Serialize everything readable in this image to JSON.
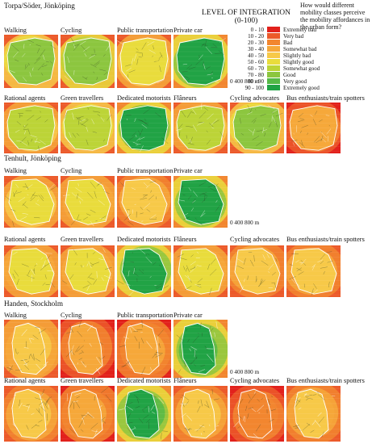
{
  "legend": {
    "title_line1": "LEVEL OF INTEGRATION",
    "title_line2": "(0-100)",
    "question": "How would different mobility classes perceive the mobility affordances in the urban form?",
    "items": [
      {
        "range": "0 - 10",
        "label": "Extremely bad",
        "color": "#e2211c"
      },
      {
        "range": "10 - 20",
        "label": "Very bad",
        "color": "#ec5a2a"
      },
      {
        "range": "20 - 30",
        "label": "Bad",
        "color": "#f2862f"
      },
      {
        "range": "30 - 40",
        "label": "Somewhat bad",
        "color": "#f6a83a"
      },
      {
        "range": "40 - 50",
        "label": "Slightly bad",
        "color": "#f7c948"
      },
      {
        "range": "50 - 60",
        "label": "Slightly good",
        "color": "#e9dc3c"
      },
      {
        "range": "60 - 70",
        "label": "Somewhat good",
        "color": "#bcd437"
      },
      {
        "range": "70 - 80",
        "label": "Good",
        "color": "#8cc63f"
      },
      {
        "range": "80 - 90",
        "label": "Very good",
        "color": "#56b947"
      },
      {
        "range": "90 - 100",
        "label": "Extremely good",
        "color": "#21a345"
      }
    ]
  },
  "sites": [
    {
      "name": "Torpa/Söder, Jönköping",
      "scale": "0    400 800 m",
      "modes": [
        {
          "label": "Walking",
          "level": 0.72
        },
        {
          "label": "Cycling",
          "level": 0.78
        },
        {
          "label": "Public transportation",
          "level": 0.55
        },
        {
          "label": "Private car",
          "level": 0.92
        }
      ],
      "classes": [
        {
          "label": "Rational agents",
          "level": 0.62
        },
        {
          "label": "Green travellers",
          "level": 0.66
        },
        {
          "label": "Dedicated motorists",
          "level": 0.92
        },
        {
          "label": "Flâneurs",
          "level": 0.6
        },
        {
          "label": "Cycling advocates",
          "level": 0.72
        },
        {
          "label": "Bus enthusiasts/train spotters",
          "level": 0.3
        }
      ]
    },
    {
      "name": "Tenhult, Jönköping",
      "scale": "0    400 800 m",
      "modes": [
        {
          "label": "Walking",
          "level": 0.52
        },
        {
          "label": "Cycling",
          "level": 0.5
        },
        {
          "label": "Public transportation",
          "level": 0.45
        },
        {
          "label": "Private car",
          "level": 0.92
        }
      ],
      "classes": [
        {
          "label": "Rational agents",
          "level": 0.5
        },
        {
          "label": "Green travellers",
          "level": 0.5
        },
        {
          "label": "Dedicated motorists",
          "level": 0.92
        },
        {
          "label": "Flâneurs",
          "level": 0.5
        },
        {
          "label": "Cycling advocates",
          "level": 0.45
        },
        {
          "label": "Bus enthusiasts/train spotters",
          "level": 0.42
        }
      ]
    },
    {
      "name": "Handen, Stockholm",
      "scale": "0    400 800 m",
      "modes": [
        {
          "label": "Walking",
          "level": 0.48
        },
        {
          "label": "Cycling",
          "level": 0.3
        },
        {
          "label": "Public transportation",
          "level": 0.35
        },
        {
          "label": "Private car",
          "level": 0.92
        }
      ],
      "classes": [
        {
          "label": "Rational agents",
          "level": 0.45
        },
        {
          "label": "Green travellers",
          "level": 0.38
        },
        {
          "label": "Dedicated motorists",
          "level": 0.92
        },
        {
          "label": "Flâneurs",
          "level": 0.45
        },
        {
          "label": "Cycling advocates",
          "level": 0.28
        },
        {
          "label": "Bus enthusiasts/train spotters",
          "level": 0.42
        }
      ]
    }
  ]
}
